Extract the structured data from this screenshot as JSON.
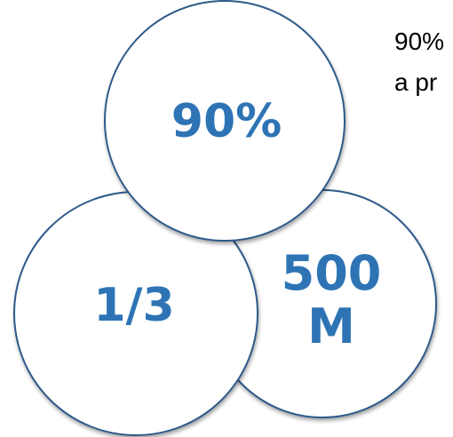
{
  "circles": {
    "top_label": "90%",
    "left_label": "1/3",
    "right_label_line1": "500",
    "right_label_line2": "M"
  },
  "side_text": {
    "line1": "90%",
    "line2": "a pr"
  },
  "colors": {
    "label": "#2E74B5",
    "circle_stroke": "#2E5A8A",
    "circle_fill": "#FFFFFF",
    "side_text": "#000000"
  }
}
